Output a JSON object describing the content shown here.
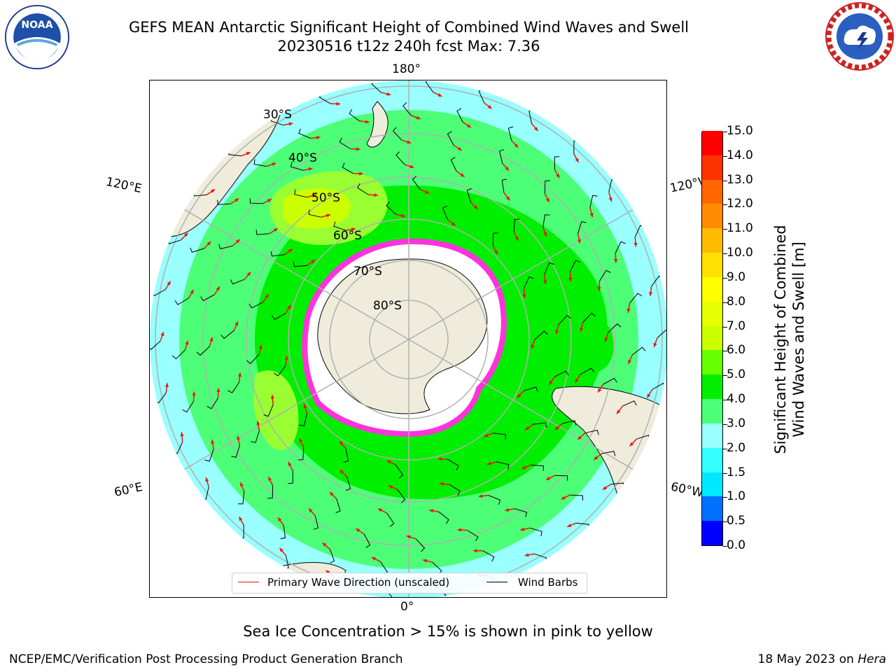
{
  "header": {
    "title_line1": "GEFS MEAN Antarctic Significant Height of Combined Wind Waves and Swell",
    "title_line2": "20230516 t12z 240h fcst   Max: 7.36"
  },
  "logos": {
    "left": "NOAA",
    "right": "NATIONAL WEATHER SERVICE"
  },
  "map": {
    "projection": "south-polar-stereographic",
    "longitude_labels": {
      "top": "180°",
      "bottom": "0°",
      "upper_left": "120°E",
      "upper_right": "120°W",
      "lower_left": "60°E",
      "lower_right": "60°W"
    },
    "latitude_labels": [
      "30°S",
      "40°S",
      "50°S",
      "60°S",
      "70°S",
      "80°S"
    ],
    "colors": {
      "land": "#efecdc",
      "ice_edge": "#ff33dd",
      "ice_inner": "#ffffff",
      "arrow": "#ee1111",
      "barb": "#000000"
    }
  },
  "colorbar": {
    "label_line1": "Significant Height of Combined",
    "label_line2": "Wind Waves and Swell [m]",
    "ticks": [
      "0.0",
      "0.5",
      "1.0",
      "1.5",
      "2.0",
      "3.0",
      "4.0",
      "5.0",
      "6.0",
      "7.0",
      "8.0",
      "9.0",
      "10.0",
      "11.0",
      "12.0",
      "13.0",
      "14.0",
      "15.0"
    ],
    "colors": [
      "#0000ff",
      "#0070ff",
      "#00e8ff",
      "#33ffff",
      "#99ffff",
      "#4dff77",
      "#00ee00",
      "#66ff00",
      "#ccff00",
      "#e6ff00",
      "#ffff00",
      "#ffe100",
      "#ffbb00",
      "#ff8c00",
      "#ff6600",
      "#ff3300",
      "#ff0000"
    ]
  },
  "legend": {
    "wave_label": "Primary Wave Direction (unscaled)",
    "barb_label": "Wind Barbs",
    "wave_color": "#ee1111",
    "barb_color": "#000000"
  },
  "note": "Sea Ice Concentration > 15% is shown in pink to yellow",
  "footer": {
    "left": "NCEP/EMC/Verification Post Processing Product Generation Branch",
    "right_prefix": "18 May 2023 on ",
    "right_host": "Hera"
  }
}
